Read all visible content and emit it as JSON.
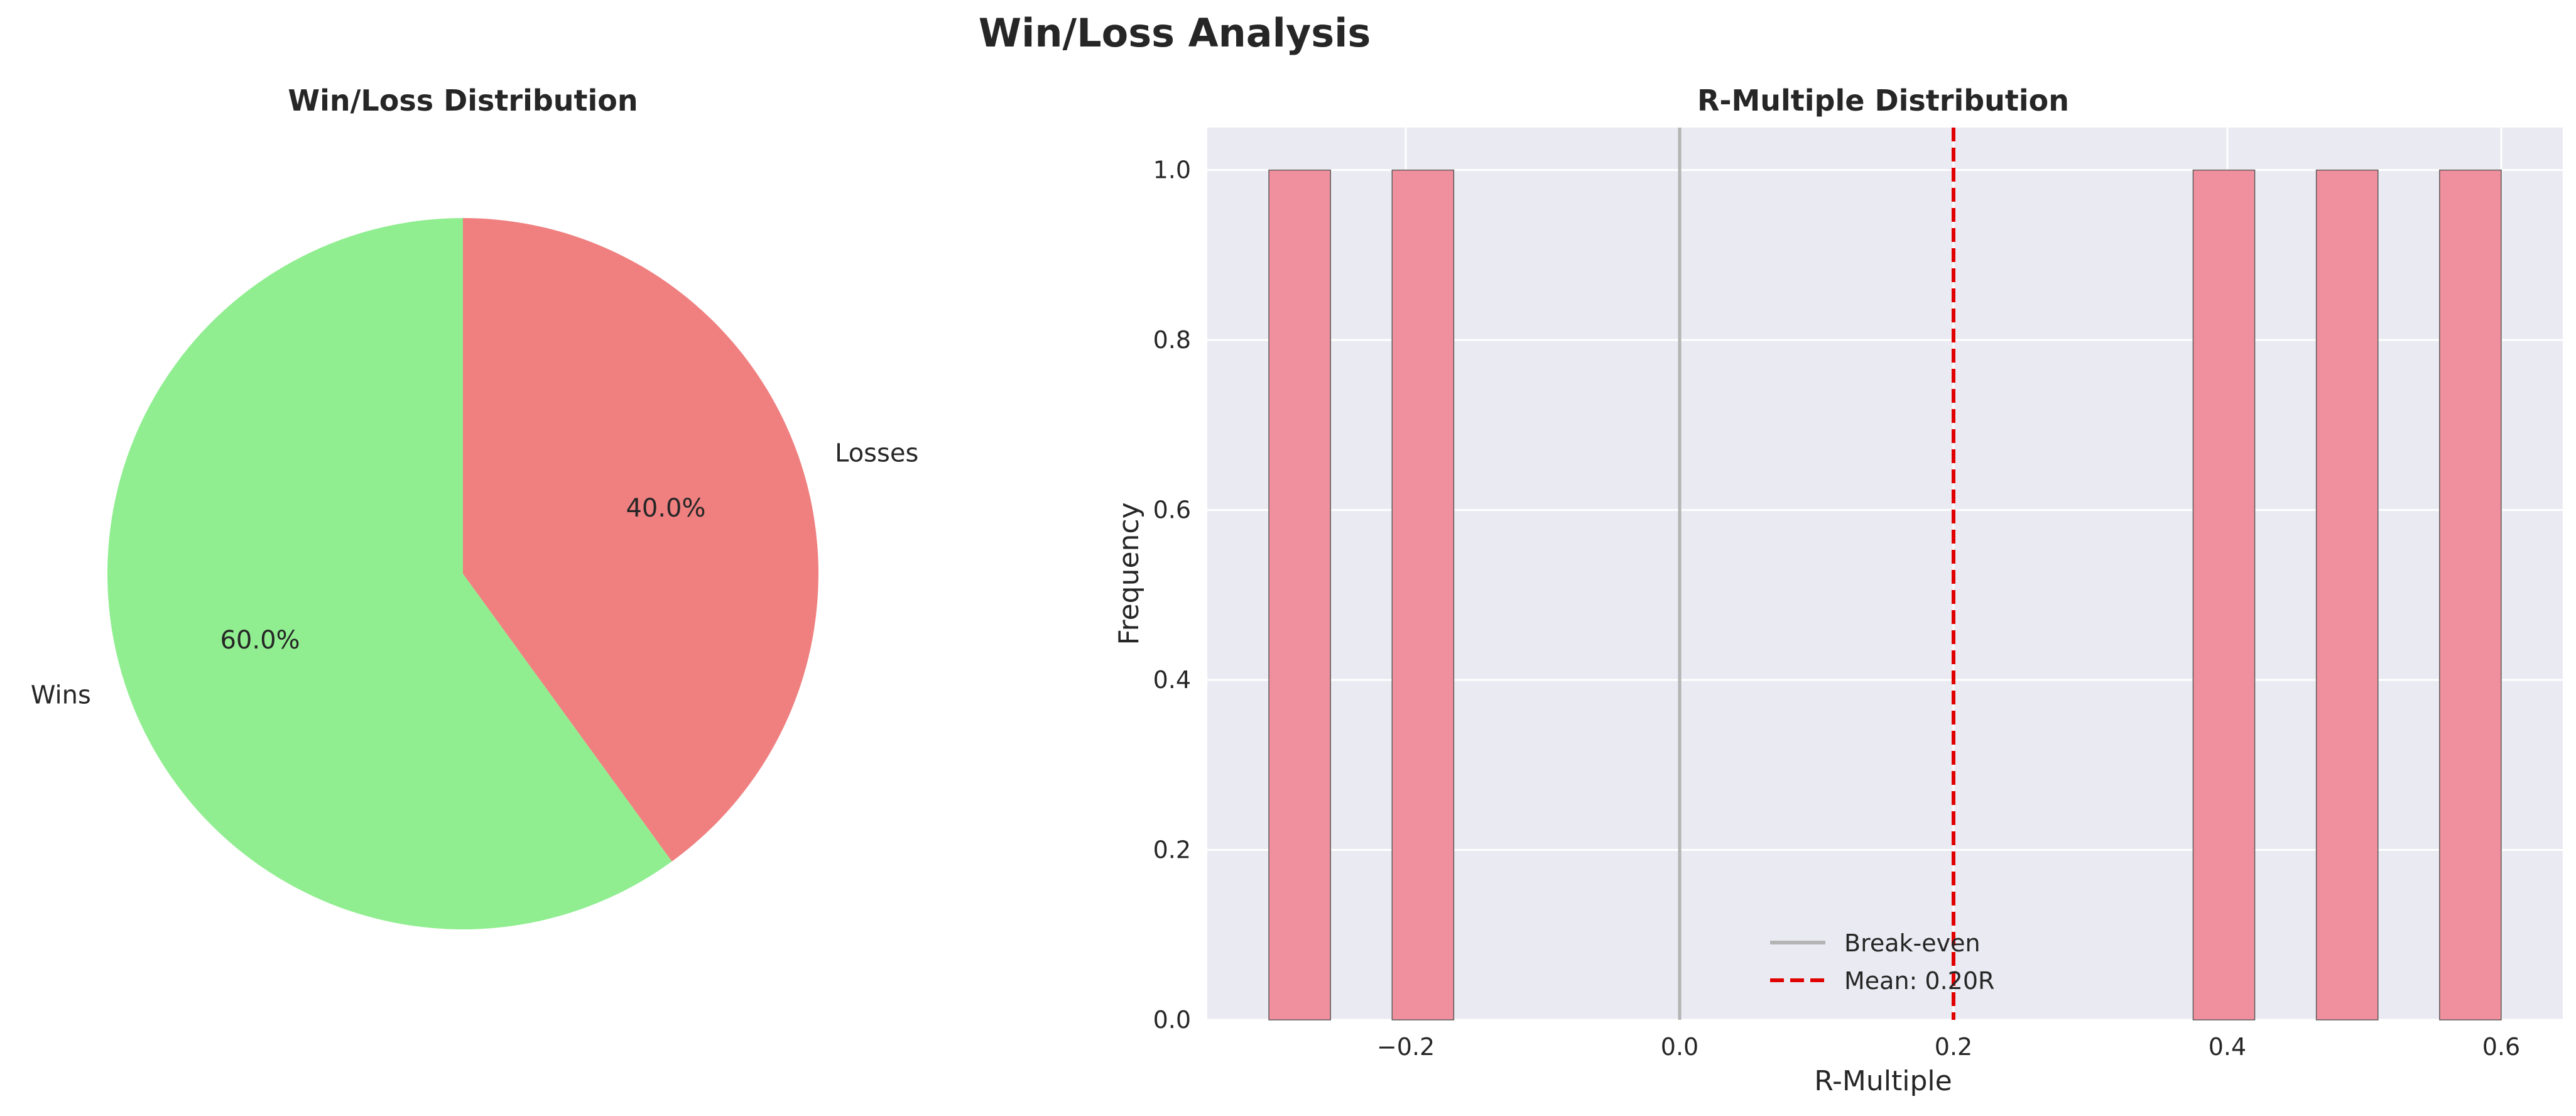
{
  "figure": {
    "title": "Win/Loss Analysis"
  },
  "colors": {
    "wins": "#90ee90",
    "losses": "#f08080",
    "histogram_bar": "#f0909f",
    "plot_background": "#eaeaf2",
    "break_even_line": "#b4b4b4",
    "mean_line": "#e00000"
  },
  "chart_data": [
    {
      "type": "pie",
      "title": "Win/Loss Distribution",
      "labels": [
        "Wins",
        "Losses"
      ],
      "values": [
        60,
        40
      ],
      "autopct": [
        "60.0%",
        "40.0%"
      ],
      "start_angle_deg": 90,
      "direction": "counterclockwise"
    },
    {
      "type": "bar",
      "subtype": "histogram",
      "title": "R-Multiple Distribution",
      "xlabel": "R-Multiple",
      "ylabel": "Frequency",
      "xlim": [
        -0.345,
        0.645
      ],
      "ylim": [
        0,
        1.05
      ],
      "xticks": [
        -0.2,
        0.0,
        0.2,
        0.4,
        0.6
      ],
      "xtick_labels": [
        "−0.2",
        "0.0",
        "0.2",
        "0.4",
        "0.6"
      ],
      "yticks": [
        0.0,
        0.2,
        0.4,
        0.6,
        0.8,
        1.0
      ],
      "ytick_labels": [
        "0.0",
        "0.2",
        "0.4",
        "0.6",
        "0.8",
        "1.0"
      ],
      "grid": true,
      "bins": [
        {
          "left": -0.3,
          "right": -0.255,
          "count": 1
        },
        {
          "left": -0.21,
          "right": -0.165,
          "count": 1
        },
        {
          "left": 0.375,
          "right": 0.42,
          "count": 1
        },
        {
          "left": 0.465,
          "right": 0.51,
          "count": 1
        },
        {
          "left": 0.555,
          "right": 0.6,
          "count": 1
        }
      ],
      "vlines": [
        {
          "name": "Break-even",
          "x": 0.0,
          "style": "solid"
        },
        {
          "name": "Mean: 0.20R",
          "x": 0.2,
          "style": "dashed"
        }
      ],
      "legend": {
        "placement": "lower-center",
        "entries": [
          "Break-even",
          "Mean: 0.20R"
        ]
      }
    }
  ]
}
